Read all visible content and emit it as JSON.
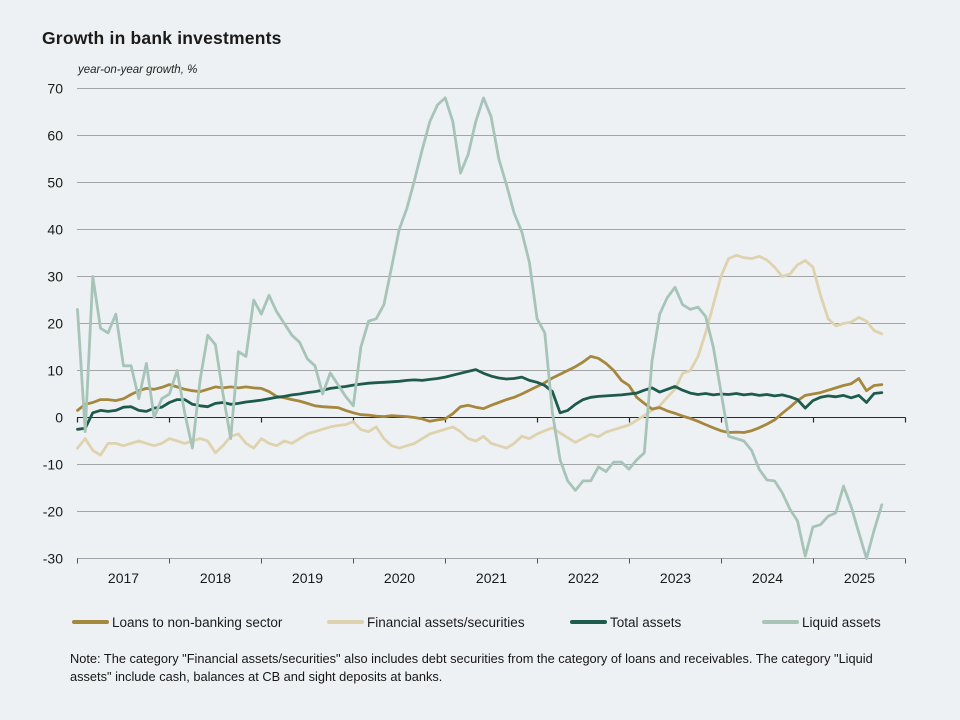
{
  "chart_data": {
    "type": "line",
    "title": "Growth in bank investments",
    "subtitle": "year-on-year growth, %",
    "note": "Note: The category \"Financial assets/securities\" also includes debt securities from the category of loans and receivables. The category \"Liquid assets\" include cash, balances at CB and sight deposits at banks.",
    "x_start": "2017-01",
    "x_end": "2025-10",
    "x_frequency": "monthly",
    "ylim": [
      -30,
      70
    ],
    "yticks": [
      70,
      60,
      50,
      40,
      30,
      20,
      10,
      0,
      -10,
      -20,
      -30
    ],
    "xticklabels": [
      "2017",
      "2018",
      "2019",
      "2020",
      "2021",
      "2022",
      "2023",
      "2024",
      "2025"
    ],
    "grid": "horizontal",
    "legend_position": "bottom",
    "background_color": "#eef1f3",
    "gridline_color": "#8a8a8a",
    "axis_color": "#2a2a2a",
    "series": [
      {
        "name": "Loans to non-banking sector",
        "color": "#a5873e",
        "values": [
          1.5,
          2.8,
          3.2,
          3.8,
          3.8,
          3.6,
          4.0,
          4.9,
          5.7,
          6.2,
          6.0,
          6.4,
          7.0,
          6.5,
          6.0,
          5.7,
          5.5,
          6.0,
          6.5,
          6.3,
          6.5,
          6.3,
          6.5,
          6.3,
          6.2,
          5.5,
          4.5,
          4.2,
          3.8,
          3.5,
          3.0,
          2.5,
          2.3,
          2.2,
          2.1,
          1.5,
          1.0,
          0.6,
          0.5,
          0.3,
          0.2,
          0.4,
          0.3,
          0.2,
          0.0,
          -0.3,
          -0.8,
          -0.5,
          -0.3,
          0.8,
          2.3,
          2.6,
          2.2,
          1.9,
          2.6,
          3.2,
          3.8,
          4.3,
          5.0,
          5.8,
          6.6,
          7.4,
          8.4,
          9.2,
          10.0,
          10.8,
          11.8,
          13.0,
          12.6,
          11.5,
          10.0,
          7.9,
          6.8,
          4.3,
          3.0,
          1.8,
          2.1,
          1.4,
          0.9,
          0.3,
          -0.2,
          -0.8,
          -1.5,
          -2.2,
          -2.8,
          -3.2,
          -3.1,
          -3.2,
          -2.8,
          -2.2,
          -1.4,
          -0.5,
          0.9,
          2.2,
          3.6,
          4.7,
          5.0,
          5.3,
          5.8,
          6.3,
          6.8,
          7.2,
          8.3,
          5.7,
          6.8,
          7.0
        ]
      },
      {
        "name": "Financial assets/securities",
        "color": "#ded3ae",
        "values": [
          -6.5,
          -4.5,
          -7.0,
          -8.0,
          -5.5,
          -5.5,
          -6.0,
          -5.5,
          -5.0,
          -5.5,
          -6.0,
          -5.5,
          -4.5,
          -5.0,
          -5.5,
          -5.0,
          -4.5,
          -5.0,
          -7.5,
          -6.0,
          -4.0,
          -3.5,
          -5.5,
          -6.5,
          -4.5,
          -5.5,
          -6.0,
          -5.0,
          -5.5,
          -4.5,
          -3.5,
          -3.0,
          -2.5,
          -2.0,
          -1.7,
          -1.5,
          -0.9,
          -2.6,
          -3.0,
          -2.0,
          -4.5,
          -6.0,
          -6.5,
          -6.0,
          -5.5,
          -4.5,
          -3.5,
          -3.0,
          -2.5,
          -2.0,
          -3.0,
          -4.5,
          -5.0,
          -4.0,
          -5.5,
          -6.0,
          -6.5,
          -5.5,
          -4.0,
          -4.5,
          -3.5,
          -2.8,
          -2.2,
          -3.3,
          -4.3,
          -5.3,
          -4.4,
          -3.6,
          -4.1,
          -3.1,
          -2.6,
          -2.1,
          -1.6,
          -0.6,
          0.4,
          1.5,
          2.5,
          4.3,
          6.0,
          9.4,
          10.0,
          13.0,
          18.0,
          24.0,
          30.0,
          33.8,
          34.5,
          34.0,
          33.8,
          34.3,
          33.5,
          32.0,
          30.0,
          30.5,
          32.5,
          33.4,
          32.0,
          26.0,
          21.0,
          19.5,
          20.0,
          20.3,
          21.3,
          20.5,
          18.5,
          17.8
        ]
      },
      {
        "name": "Total assets",
        "color": "#1e5b4d",
        "values": [
          -2.5,
          -2.3,
          1.0,
          1.5,
          1.3,
          1.5,
          2.2,
          2.3,
          1.5,
          1.3,
          2.0,
          2.2,
          3.2,
          3.8,
          3.8,
          2.8,
          2.5,
          2.3,
          3.0,
          3.2,
          2.8,
          3.0,
          3.3,
          3.5,
          3.7,
          4.0,
          4.3,
          4.5,
          4.8,
          5.0,
          5.3,
          5.5,
          5.8,
          6.2,
          6.4,
          6.6,
          6.9,
          7.1,
          7.3,
          7.4,
          7.5,
          7.6,
          7.7,
          7.9,
          8.0,
          7.9,
          8.1,
          8.3,
          8.6,
          9.0,
          9.4,
          9.8,
          10.2,
          9.4,
          8.8,
          8.4,
          8.2,
          8.3,
          8.6,
          7.9,
          7.5,
          6.8,
          5.5,
          1.0,
          1.5,
          2.8,
          3.8,
          4.3,
          4.5,
          4.6,
          4.7,
          4.8,
          5.0,
          5.2,
          5.8,
          6.3,
          5.4,
          6.0,
          6.6,
          5.8,
          5.2,
          4.9,
          5.1,
          4.8,
          5.0,
          4.9,
          5.1,
          4.8,
          5.0,
          4.7,
          4.9,
          4.6,
          4.8,
          4.4,
          3.8,
          2.0,
          3.6,
          4.3,
          4.6,
          4.4,
          4.7,
          4.2,
          4.7,
          3.2,
          5.1,
          5.3
        ]
      },
      {
        "name": "Liquid assets",
        "color": "#a7c4b8",
        "values": [
          23,
          -3,
          30,
          19,
          18,
          22,
          11,
          11,
          4,
          11.5,
          0,
          4,
          5,
          10,
          1,
          -6.5,
          8,
          17.5,
          15.5,
          5,
          -4.5,
          14,
          13,
          25,
          22,
          26,
          22.5,
          20,
          17.5,
          16,
          12.5,
          11,
          5,
          9.5,
          7,
          4.5,
          2.5,
          15,
          20.5,
          21,
          24,
          32,
          40,
          44.5,
          50.5,
          57,
          63,
          66.5,
          68,
          63,
          52,
          56,
          63,
          68,
          64,
          55,
          49.5,
          43.5,
          39.5,
          33,
          21,
          18,
          1,
          -9,
          -13.5,
          -15.5,
          -13.5,
          -13.5,
          -10.5,
          -11.5,
          -9.5,
          -9.5,
          -11,
          -9,
          -7.5,
          12,
          22,
          25.5,
          27.7,
          24,
          23,
          23.5,
          21.5,
          15,
          5.5,
          -4,
          -4.5,
          -5,
          -7,
          -11,
          -13.3,
          -13.5,
          -16,
          -19.5,
          -22,
          -29.5,
          -23.3,
          -22.8,
          -21,
          -20.3,
          -14.6,
          -19,
          -24.5,
          -30,
          -24,
          -18.6
        ]
      }
    ]
  }
}
